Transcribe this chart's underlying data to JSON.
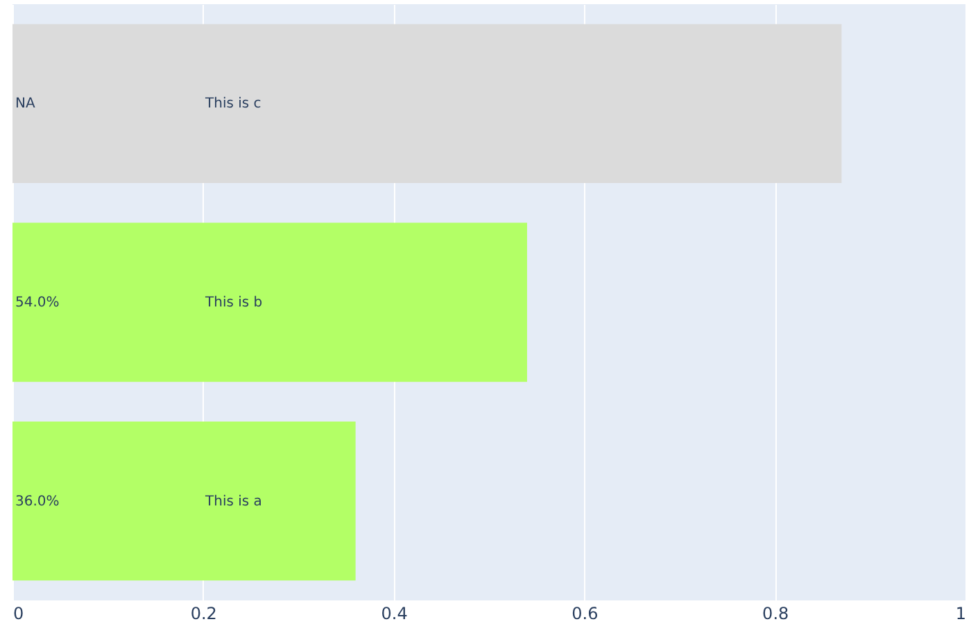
{
  "chart_data": {
    "type": "bar",
    "orientation": "horizontal",
    "categories": [
      null,
      null,
      null
    ],
    "values": [
      0.87,
      0.54,
      0.36
    ],
    "colors": [
      "#dbdbdb",
      "#b3ff66",
      "#b3ff66"
    ],
    "value_labels": [
      "NA",
      "54.0%",
      "36.0%"
    ],
    "annotations": [
      "This is c",
      "This is b",
      "This is a"
    ],
    "xlim": [
      0,
      1
    ],
    "xticks": [
      0,
      0.2,
      0.4,
      0.6,
      0.8,
      1
    ],
    "grid": "x",
    "tick_labels": "x"
  }
}
